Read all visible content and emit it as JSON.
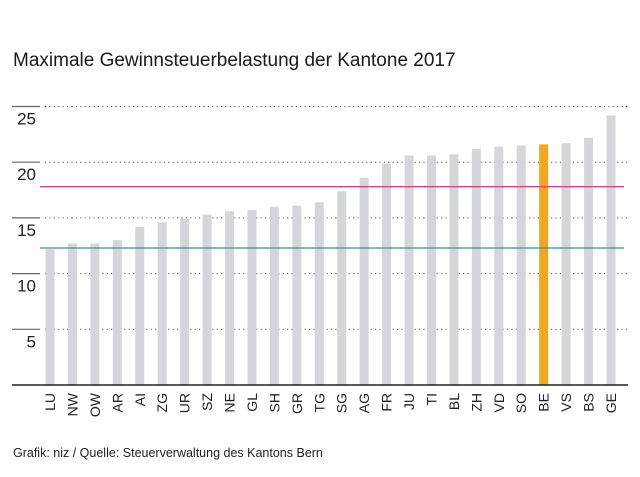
{
  "chart_data": {
    "type": "bar",
    "title": "Maximale Gewinnsteuerbelastung der Kantone 2017",
    "source": "Grafik: niz / Quelle: Steuerverwaltung des Kantons Bern",
    "categories": [
      "LU",
      "NW",
      "OW",
      "AR",
      "AI",
      "ZG",
      "UR",
      "SZ",
      "NE",
      "GL",
      "SH",
      "GR",
      "TG",
      "SG",
      "AG",
      "FR",
      "JU",
      "TI",
      "BL",
      "ZH",
      "VD",
      "SO",
      "BE",
      "VS",
      "BS",
      "GE"
    ],
    "values": [
      12.2,
      12.7,
      12.7,
      13.0,
      14.2,
      14.6,
      14.9,
      15.3,
      15.6,
      15.7,
      16.0,
      16.1,
      16.4,
      17.4,
      18.6,
      19.9,
      20.6,
      20.6,
      20.7,
      21.2,
      21.4,
      21.5,
      21.6,
      21.7,
      22.2,
      24.2
    ],
    "highlight": "BE",
    "reference_lines": [
      {
        "value": 17.8,
        "color": "#d6408a"
      },
      {
        "value": 12.3,
        "color": "#3a8fa0"
      }
    ],
    "yticks": [
      5,
      10,
      15,
      20,
      25
    ],
    "ylim": [
      0,
      25
    ],
    "grid": true,
    "colors": {
      "bar": "#d5d6d9",
      "highlight": "#f2a724",
      "axis": "#222222",
      "grid": "#555555"
    }
  }
}
